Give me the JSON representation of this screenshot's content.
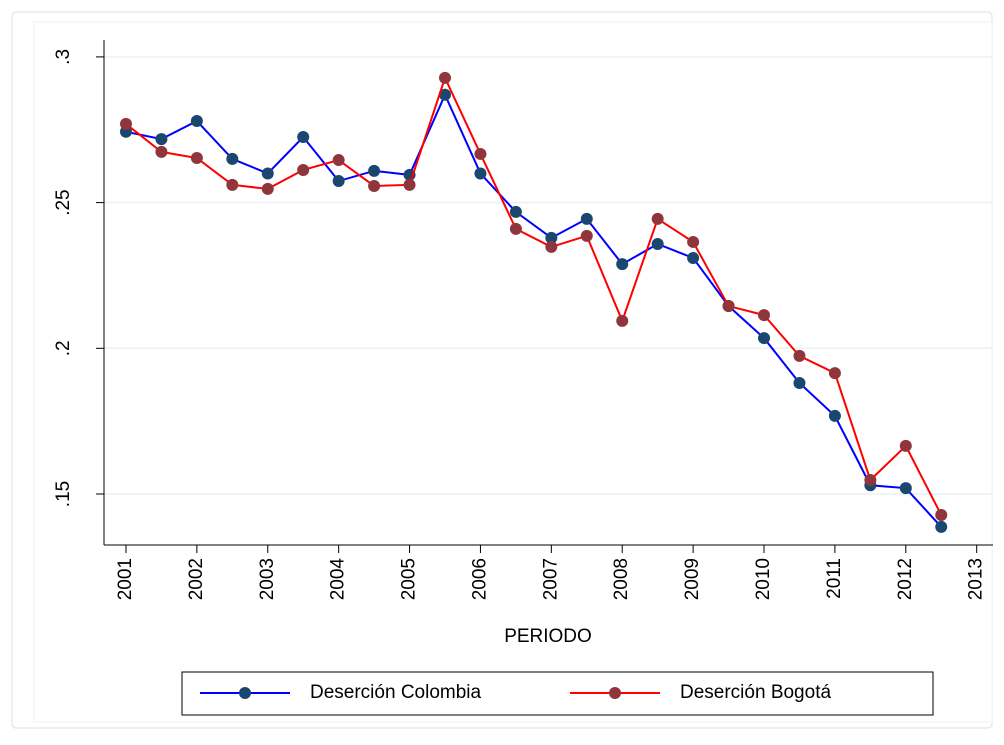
{
  "chart_data": {
    "type": "line",
    "x_label": "PERIODO",
    "x": [
      2001,
      2001.5,
      2002,
      2002.5,
      2003,
      2003.5,
      2004,
      2004.5,
      2005,
      2005.5,
      2006,
      2006.5,
      2007,
      2007.5,
      2008,
      2008.5,
      2009,
      2009.5,
      2010,
      2010.5,
      2011,
      2011.5,
      2012,
      2012.5
    ],
    "series": [
      {
        "name": "Deserción Colombia",
        "color": "#0000ff",
        "marker_color": "#1a476f",
        "values": [
          0.2743,
          0.2718,
          0.278,
          0.265,
          0.26,
          0.2725,
          0.2574,
          0.2609,
          0.2595,
          0.287,
          0.26,
          0.2468,
          0.2379,
          0.2444,
          0.2289,
          0.2358,
          0.231,
          0.2145,
          0.2035,
          0.1881,
          0.1768,
          0.153,
          0.152,
          0.1387
        ]
      },
      {
        "name": "Deserción Bogotá",
        "color": "#ff0000",
        "marker_color": "#90353b",
        "values": [
          0.277,
          0.2674,
          0.2653,
          0.2561,
          0.2547,
          0.2612,
          0.2646,
          0.2557,
          0.2561,
          0.2928,
          0.2667,
          0.241,
          0.2348,
          0.2386,
          0.2094,
          0.2444,
          0.2365,
          0.2145,
          0.2114,
          0.1974,
          0.1915,
          0.1548,
          0.1665,
          0.1428
        ]
      }
    ],
    "xlim": [
      2000.69,
      2013.23
    ],
    "xticks": [
      2001,
      2002,
      2003,
      2004,
      2005,
      2006,
      2007,
      2008,
      2009,
      2010,
      2011,
      2012,
      2013
    ],
    "ylim": [
      0.1325,
      0.3058
    ],
    "yticks": [
      {
        "value": 0.15,
        "label": ".15"
      },
      {
        "value": 0.2,
        "label": ".2"
      },
      {
        "value": 0.25,
        "label": ".25"
      },
      {
        "value": 0.3,
        "label": ".3"
      }
    ],
    "grid": true
  }
}
